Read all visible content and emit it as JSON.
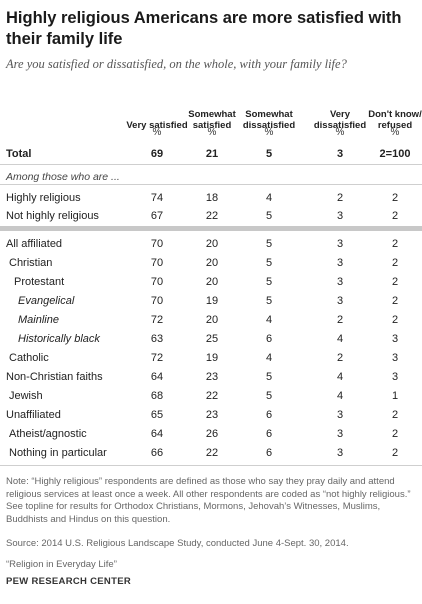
{
  "title": "Highly religious Americans are more satisfied with their family life",
  "subtitle": "Are you satisfied or dissatisfied, on the whole, with your family life?",
  "chart_data": {
    "type": "table",
    "columns": [
      "Very satisfied",
      "Somewhat satisfied",
      "Somewhat dissatisfied",
      "Very dissatisfied",
      "Don't know/ refused"
    ],
    "unit_row": [
      "%",
      "%",
      "%",
      "%",
      "%"
    ],
    "section_label": "Among those who are ...",
    "rows": [
      {
        "label": "Total",
        "values": [
          "69",
          "21",
          "5",
          "3",
          "2=100"
        ]
      },
      {
        "label": "Highly religious",
        "values": [
          "74",
          "18",
          "4",
          "2",
          "2"
        ]
      },
      {
        "label": "Not highly religious",
        "values": [
          "67",
          "22",
          "5",
          "3",
          "2"
        ]
      },
      {
        "label": "All affiliated",
        "values": [
          "70",
          "20",
          "5",
          "3",
          "2"
        ]
      },
      {
        "label": "Christian",
        "values": [
          "70",
          "20",
          "5",
          "3",
          "2"
        ]
      },
      {
        "label": "Protestant",
        "values": [
          "70",
          "20",
          "5",
          "3",
          "2"
        ]
      },
      {
        "label": "Evangelical",
        "values": [
          "70",
          "19",
          "5",
          "3",
          "2"
        ]
      },
      {
        "label": "Mainline",
        "values": [
          "72",
          "20",
          "4",
          "2",
          "2"
        ]
      },
      {
        "label": "Historically black",
        "values": [
          "63",
          "25",
          "6",
          "4",
          "3"
        ]
      },
      {
        "label": "Catholic",
        "values": [
          "72",
          "19",
          "4",
          "2",
          "3"
        ]
      },
      {
        "label": "Non-Christian faiths",
        "values": [
          "64",
          "23",
          "5",
          "4",
          "3"
        ]
      },
      {
        "label": "Jewish",
        "values": [
          "68",
          "22",
          "5",
          "4",
          "1"
        ]
      },
      {
        "label": "Unaffiliated",
        "values": [
          "65",
          "23",
          "6",
          "3",
          "2"
        ]
      },
      {
        "label": "Atheist/agnostic",
        "values": [
          "64",
          "26",
          "6",
          "3",
          "2"
        ]
      },
      {
        "label": "Nothing in particular",
        "values": [
          "66",
          "22",
          "6",
          "3",
          "2"
        ]
      }
    ]
  },
  "note": "Note: “Highly religious” respondents are defined as those who say they pray daily and attend religious services at least once a week. All other respondents are coded as “not highly religious.” See topline for results for Orthodox Christians, Mormons, Jehovah’s Witnesses, Muslims, Buddhists and Hindus on this question.",
  "source": "Source: 2014 U.S. Religious Landscape Study, conducted June 4-Sept. 30, 2014.",
  "report": "“Religion in Everyday Life”",
  "brand": "PEW RESEARCH CENTER"
}
